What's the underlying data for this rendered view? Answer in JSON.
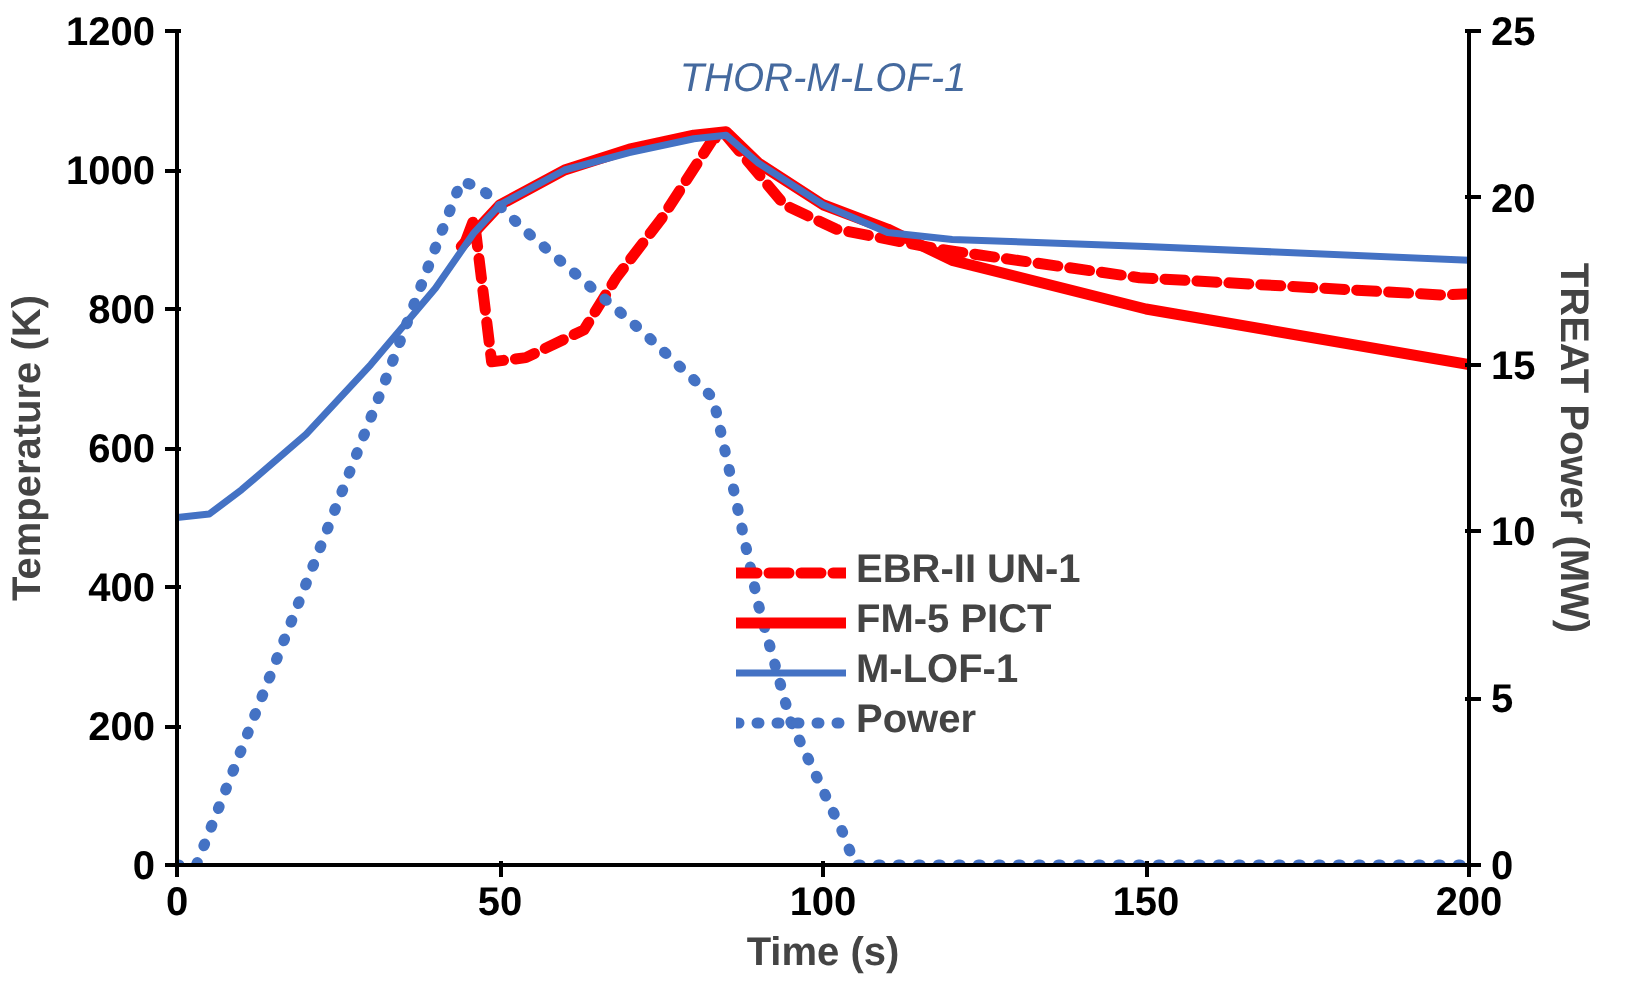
{
  "chart_data": {
    "type": "line",
    "title": "THOR-M-LOF-1",
    "xlabel": "Time (s)",
    "ylabel": "Temperature (K)",
    "y2label": "TREAT Power (MW)",
    "xlim": [
      0,
      200
    ],
    "xticks": [
      0,
      50,
      100,
      150,
      200
    ],
    "ylim": [
      0,
      1200
    ],
    "yticks": [
      0,
      200,
      400,
      600,
      800,
      1000,
      1200
    ],
    "y2lim": [
      0,
      25
    ],
    "y2ticks": [
      0,
      5,
      10,
      15,
      20,
      25
    ],
    "grid": false,
    "legend": "right",
    "marker": "none",
    "series": [
      {
        "name": "EBR-II UN-1",
        "color": "#ff0000",
        "line_style": "dashed",
        "x": [
          44.7,
          46,
          48.7,
          54,
          63,
          68,
          75,
          83,
          85,
          94,
          102,
          118,
          149,
          196,
          200
        ],
        "values": [
          898,
          930,
          724,
          730,
          770,
          845,
          930,
          1045,
          1050,
          950,
          915,
          886,
          845,
          820,
          822
        ]
      },
      {
        "name": "FM-5 PICT",
        "color": "#ff0000",
        "line_style": "solid",
        "x": [
          44,
          46,
          50,
          60,
          70,
          80,
          85,
          90,
          100,
          110,
          120,
          150,
          200
        ],
        "values": [
          890,
          910,
          950,
          1000,
          1030,
          1050,
          1055,
          1010,
          950,
          915,
          870,
          800,
          720
        ]
      },
      {
        "name": "M-LOF-1",
        "color": "#4472c4",
        "line_style": "solid",
        "x": [
          0,
          5,
          10,
          20,
          30,
          40,
          46,
          50,
          60,
          70,
          80,
          85,
          90,
          100,
          110,
          120,
          150,
          200
        ],
        "values": [
          500,
          505,
          540,
          620,
          720,
          830,
          910,
          950,
          1000,
          1025,
          1045,
          1050,
          1010,
          950,
          910,
          900,
          890,
          870
        ]
      },
      {
        "name": "Power",
        "color": "#4472c4",
        "line_style": "dotted",
        "axis": "y2",
        "x": [
          0,
          3,
          32,
          40,
          44,
          47,
          54,
          72,
          83,
          86,
          90,
          95,
          103,
          105,
          200
        ],
        "values": [
          0,
          0,
          14.4,
          18.5,
          20.5,
          20.3,
          19.0,
          16.0,
          14.0,
          11.4,
          7.8,
          4.3,
          1.0,
          0,
          0
        ]
      }
    ]
  }
}
